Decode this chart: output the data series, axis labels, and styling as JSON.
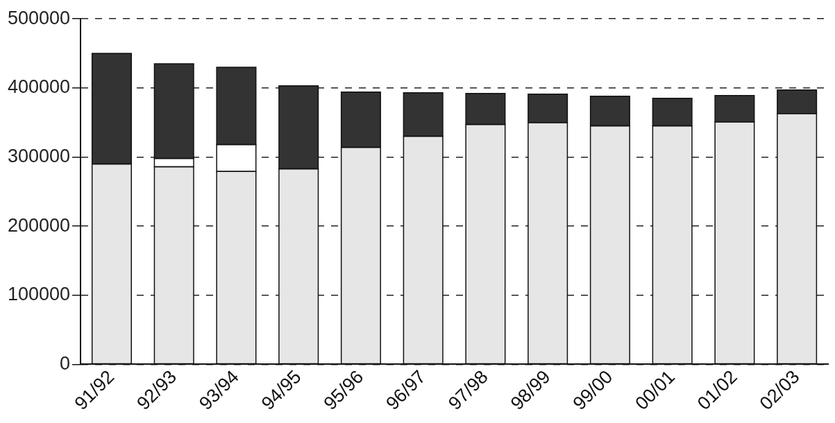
{
  "chart_data": {
    "type": "bar",
    "stacked": true,
    "categories": [
      "91/92",
      "92/93",
      "93/94",
      "94/95",
      "95/96",
      "96/97",
      "97/98",
      "98/99",
      "99/00",
      "00/01",
      "01/02",
      "02/03"
    ],
    "series": [
      {
        "color": "#e6e6e6",
        "values": [
          290000,
          286000,
          279000,
          283000,
          314000,
          330000,
          347000,
          350000,
          345000,
          345000,
          351000,
          363000
        ]
      },
      {
        "color": "#ffffff",
        "values": [
          null,
          12000,
          39000,
          null,
          null,
          null,
          null,
          null,
          null,
          null,
          null,
          null
        ]
      },
      {
        "color": "#333333",
        "values": [
          160000,
          137000,
          112000,
          120000,
          80000,
          63000,
          45000,
          41000,
          43000,
          40000,
          38000,
          34000
        ]
      }
    ],
    "ylim": [
      0,
      500000
    ],
    "yticks": [
      0,
      100000,
      200000,
      300000,
      400000,
      500000
    ],
    "grid": "y",
    "legend": false
  }
}
